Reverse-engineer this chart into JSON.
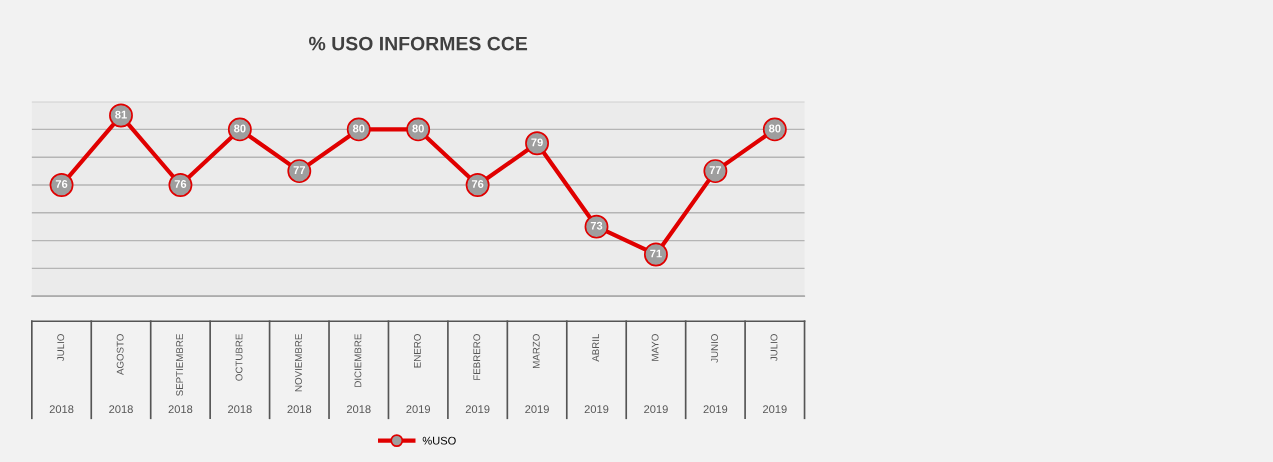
{
  "chart_data": {
    "type": "line",
    "title": "% USO INFORMES CCE",
    "categories": [
      "JULIO",
      "AGOSTO",
      "SEPTIEMBRE",
      "OCTUBRE",
      "NOVIEMBRE",
      "DICIEMBRE",
      "ENERO",
      "FEBRERO",
      "MARZO",
      "ABRIL",
      "MAYO",
      "JUNIO",
      "JULIO"
    ],
    "annotations": [
      "2018",
      "2018",
      "2018",
      "2018",
      "2018",
      "2018",
      "2019",
      "2019",
      "2019",
      "2019",
      "2019",
      "2019",
      "2019"
    ],
    "series": [
      {
        "name": "%USO",
        "color": "#e00000",
        "values": [
          76,
          81,
          76,
          80,
          77,
          80,
          80,
          76,
          79,
          73,
          71,
          77,
          80
        ]
      }
    ],
    "ylim": [
      68,
      82
    ],
    "yticks": [
      {
        "value": 68,
        "label": null
      },
      {
        "value": 70,
        "label": null
      },
      {
        "value": 72,
        "label": null
      },
      {
        "value": 74,
        "label": null
      },
      {
        "value": 76,
        "label": null
      },
      {
        "value": 78,
        "label": null
      },
      {
        "value": 80,
        "label": null
      },
      {
        "value": 82,
        "label": null
      }
    ],
    "tick_labels": "x",
    "grid": "y",
    "legend": "bottom",
    "marker": "circle",
    "line_style": "solid",
    "data_labels": true
  }
}
